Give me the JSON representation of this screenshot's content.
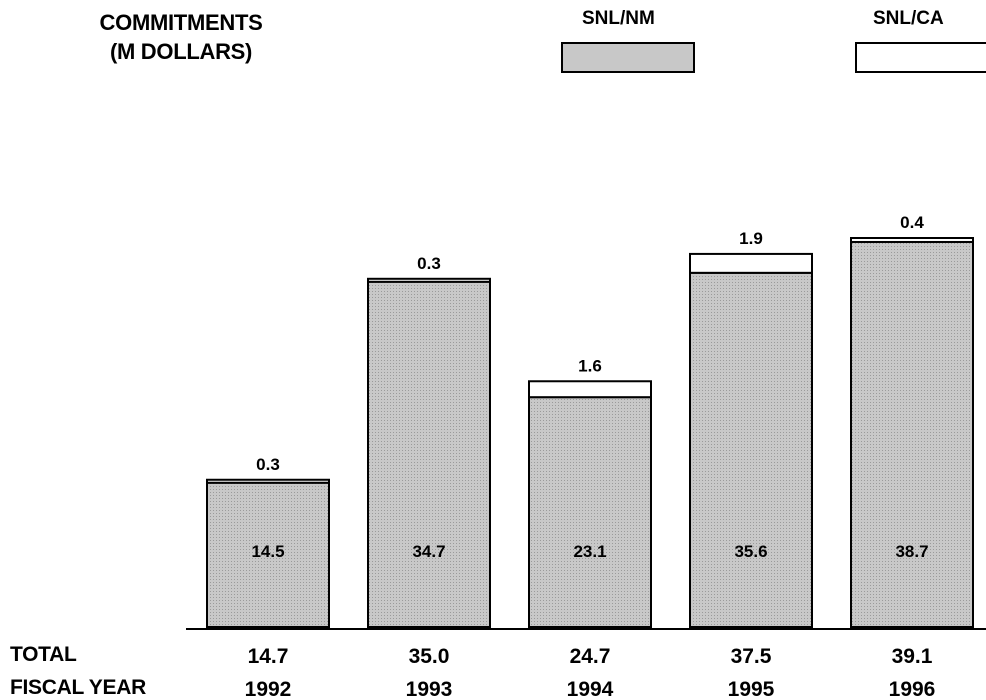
{
  "title_lines": [
    "COMMITMENTS",
    "(M DOLLARS)"
  ],
  "row_labels": {
    "total": "TOTAL",
    "fiscal_year": "FISCAL YEAR"
  },
  "colors": {
    "nm_fill": "#c8c8c8",
    "ca_fill": "#ffffff",
    "outline": "#000000"
  },
  "chart_data": {
    "type": "bar",
    "stacked": true,
    "categories": [
      "1992",
      "1993",
      "1994",
      "1995",
      "1996"
    ],
    "series": [
      {
        "name": "SNL/NM",
        "values": [
          14.5,
          34.7,
          23.1,
          35.6,
          38.7
        ],
        "value_labels": [
          "14.5",
          "34.7",
          "23.1",
          "35.6",
          "38.7"
        ]
      },
      {
        "name": "SNL/CA",
        "values": [
          0.3,
          0.3,
          1.6,
          1.9,
          0.4
        ],
        "value_labels": [
          "0.3",
          "0.3",
          "1.6",
          "1.9",
          "0.4"
        ]
      }
    ],
    "totals": [
      "14.7",
      "35.0",
      "24.7",
      "37.5",
      "39.1"
    ],
    "ylim": [
      0,
      39.1
    ],
    "legend": "top"
  }
}
